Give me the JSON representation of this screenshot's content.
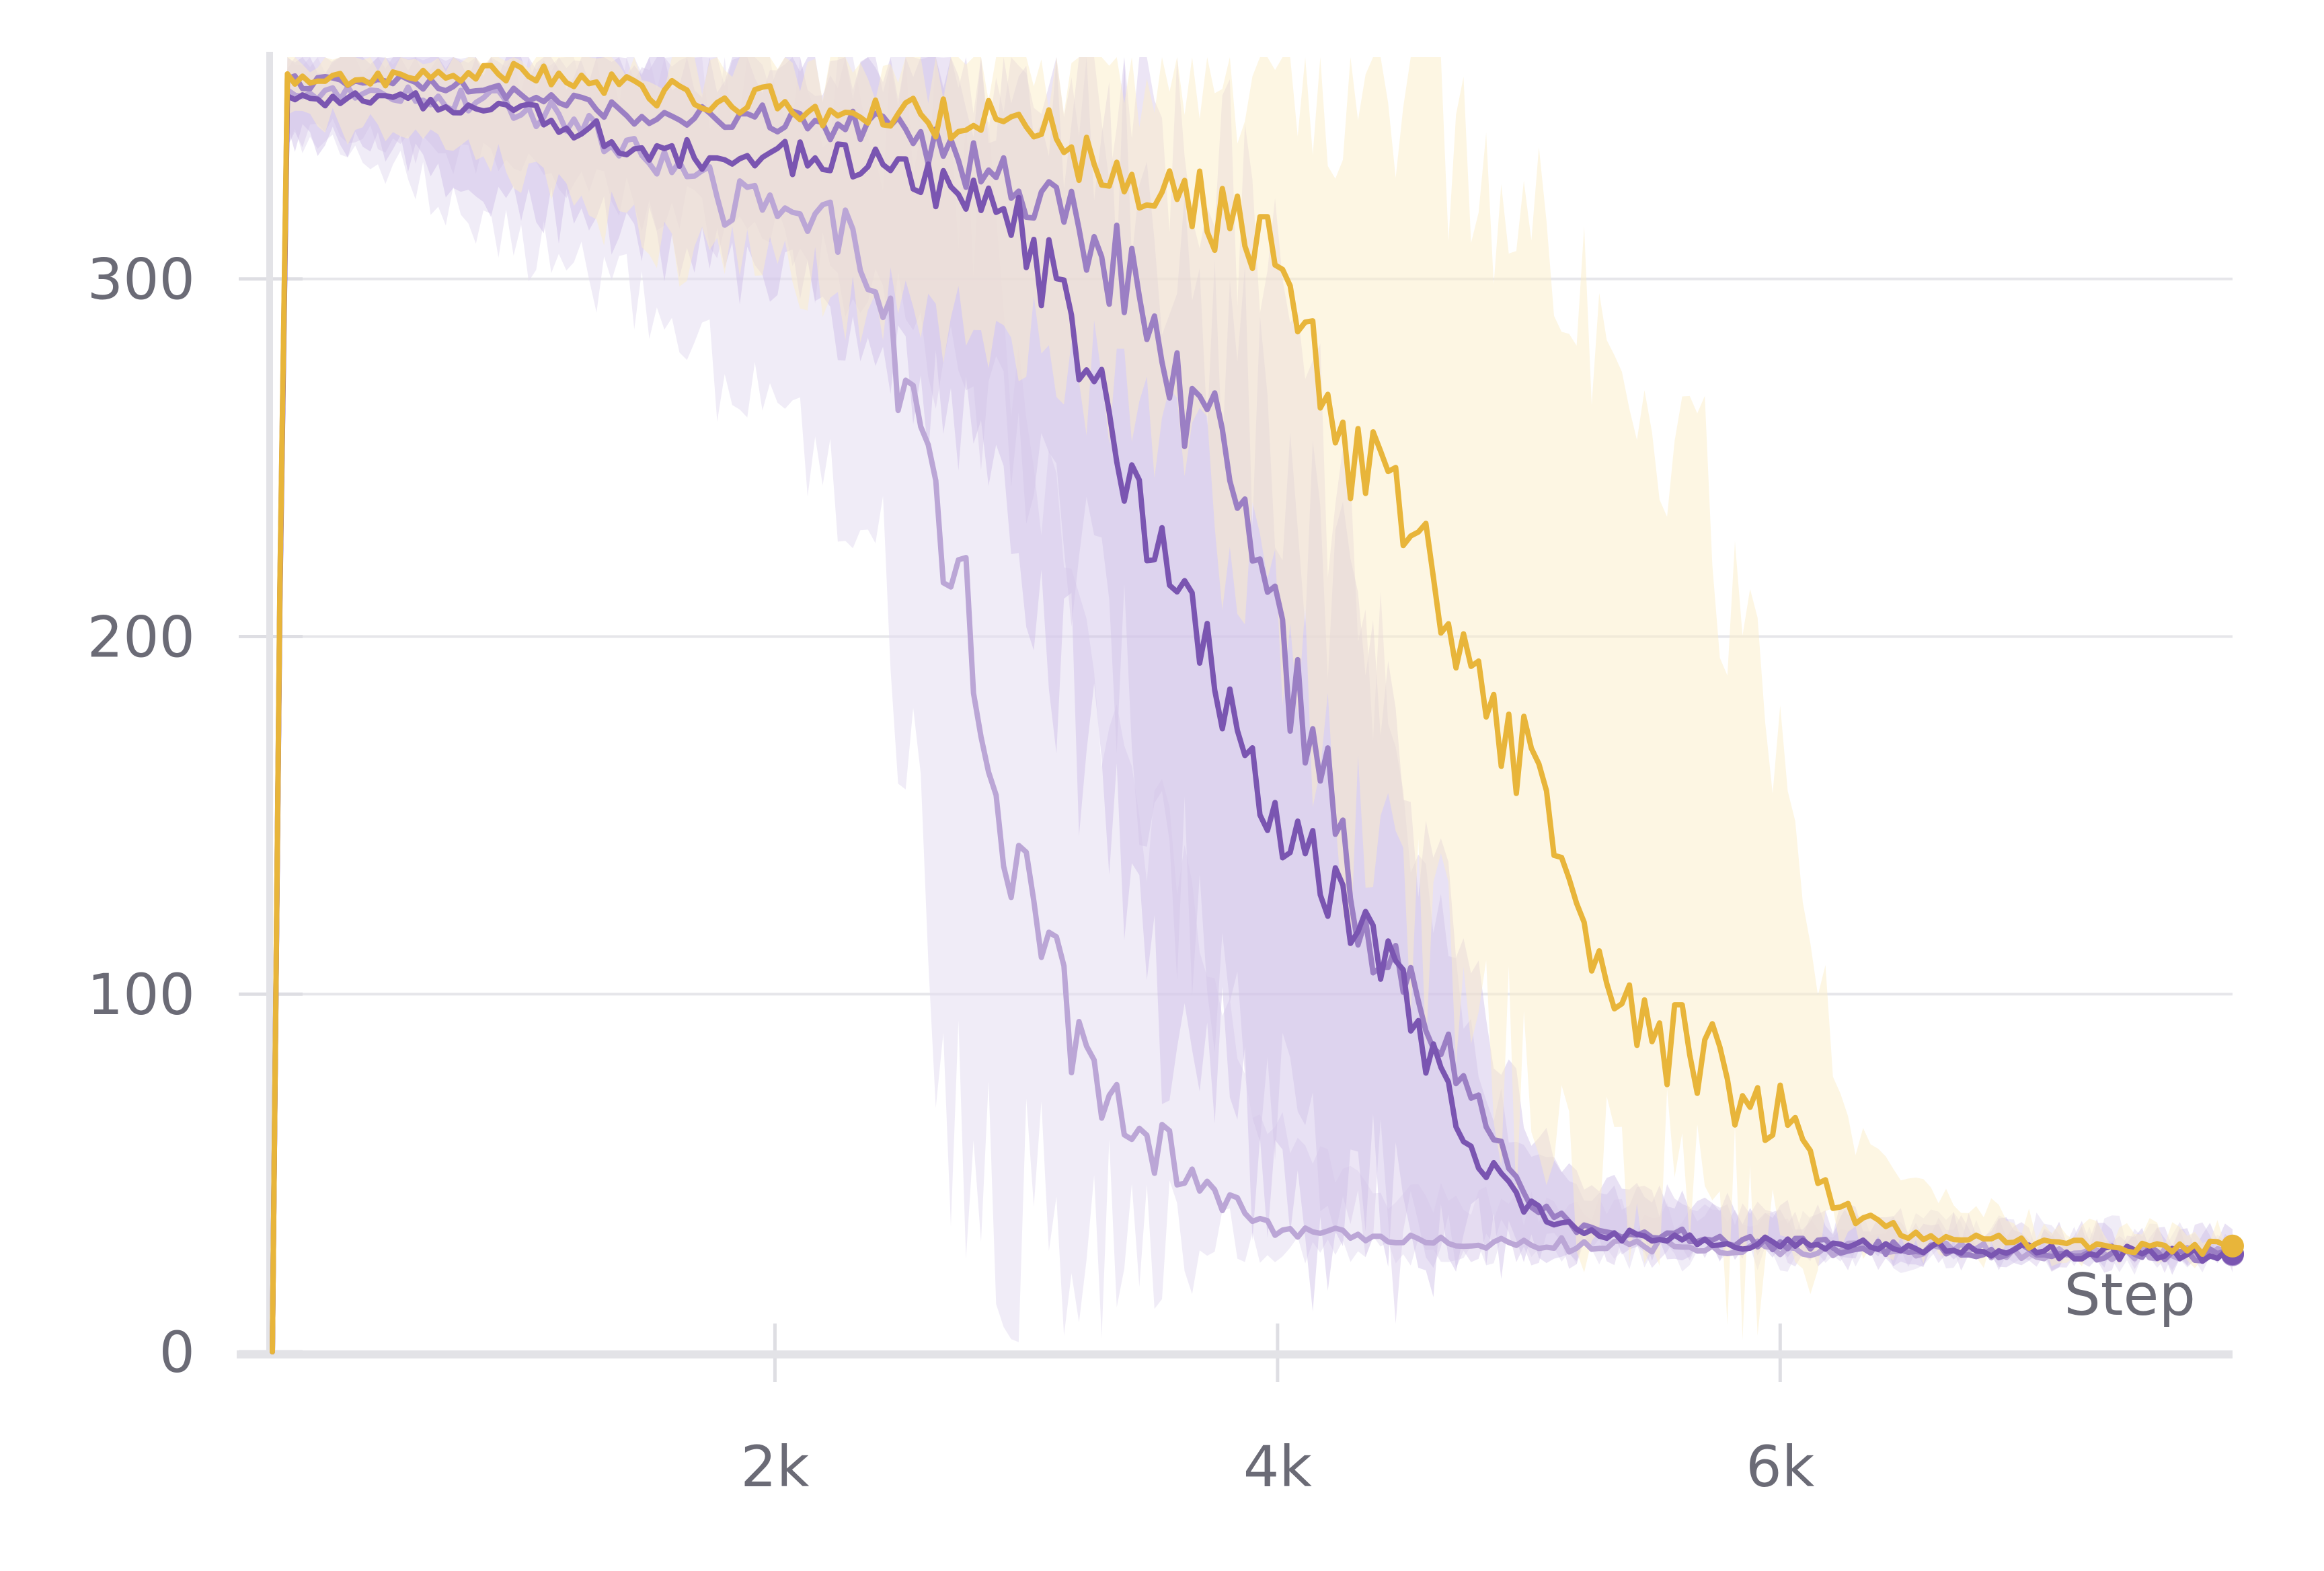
{
  "chart_data": {
    "type": "line",
    "xlabel": "Step",
    "ylabel": "",
    "xlim": [
      0,
      7800
    ],
    "ylim": [
      0,
      362
    ],
    "grid": true,
    "x_ticks": [
      {
        "value": 2000,
        "label": "2k"
      },
      {
        "value": 4000,
        "label": "4k"
      },
      {
        "value": 6000,
        "label": "6k"
      }
    ],
    "y_ticks": [
      {
        "value": 0,
        "label": "0"
      },
      {
        "value": 100,
        "label": "100"
      },
      {
        "value": 200,
        "label": "200"
      },
      {
        "value": 300,
        "label": "300"
      }
    ],
    "series": [
      {
        "color": "#bba6d6",
        "band_color": "#e4dcf0",
        "band_opacity": 0.55,
        "x": [
          0,
          50,
          500,
          1000,
          1500,
          1800,
          2200,
          2400,
          2500,
          2600,
          2650,
          2750,
          2800,
          2850,
          2950,
          3050,
          3150,
          3250,
          3400,
          3550,
          3700,
          3800,
          3900,
          4100,
          4400,
          5000,
          6000,
          7000,
          7800
        ],
        "y": [
          0,
          352,
          352,
          348,
          335,
          322,
          315,
          305,
          270,
          260,
          225,
          215,
          185,
          165,
          135,
          120,
          95,
          80,
          70,
          55,
          50,
          42,
          35,
          33,
          32,
          30,
          29,
          28,
          27
        ],
        "y_low": [
          0,
          340,
          330,
          310,
          290,
          270,
          250,
          230,
          180,
          120,
          80,
          60,
          50,
          42,
          38,
          36,
          35,
          34,
          33,
          32,
          31,
          30,
          30,
          29,
          29,
          28,
          27,
          27,
          26
        ],
        "y_high": [
          0,
          362,
          362,
          362,
          360,
          358,
          355,
          352,
          350,
          345,
          340,
          330,
          320,
          310,
          290,
          260,
          230,
          200,
          170,
          140,
          110,
          90,
          70,
          55,
          45,
          40,
          36,
          34,
          32
        ]
      },
      {
        "color": "#9b7fc4",
        "band_color": "#d9ccec",
        "band_opacity": 0.5,
        "x": [
          0,
          50,
          500,
          1000,
          1500,
          2000,
          2500,
          3000,
          3200,
          3400,
          3500,
          3600,
          3700,
          3800,
          3900,
          4000,
          4100,
          4200,
          4300,
          4400,
          4500,
          4600,
          4700,
          4800,
          4900,
          5000,
          5200,
          6000,
          7000,
          7800
        ],
        "y": [
          0,
          355,
          355,
          352,
          345,
          345,
          340,
          325,
          315,
          300,
          285,
          270,
          260,
          250,
          230,
          200,
          175,
          155,
          130,
          110,
          100,
          95,
          80,
          70,
          55,
          42,
          35,
          30,
          28,
          27
        ],
        "y_low": [
          0,
          342,
          338,
          330,
          320,
          310,
          290,
          250,
          220,
          190,
          160,
          130,
          100,
          80,
          70,
          60,
          50,
          45,
          40,
          36,
          34,
          32,
          31,
          30,
          30,
          29,
          28,
          28,
          27,
          26
        ],
        "y_high": [
          0,
          362,
          362,
          362,
          362,
          362,
          362,
          360,
          358,
          355,
          350,
          345,
          340,
          330,
          320,
          300,
          280,
          250,
          220,
          190,
          160,
          130,
          100,
          80,
          65,
          55,
          45,
          38,
          33,
          31
        ]
      },
      {
        "color": "#7a55b1",
        "band_color": "#cdbde6",
        "band_opacity": 0.45,
        "x": [
          0,
          50,
          500,
          1000,
          1500,
          2000,
          2500,
          2800,
          3000,
          3100,
          3200,
          3300,
          3400,
          3500,
          3600,
          3700,
          3800,
          3900,
          4000,
          4100,
          4200,
          4300,
          4400,
          4500,
          4600,
          4700,
          4800,
          4900,
          5000,
          5200,
          6000,
          7000,
          7800
        ],
        "y": [
          0,
          350,
          350,
          348,
          335,
          335,
          330,
          325,
          310,
          300,
          280,
          265,
          245,
          225,
          210,
          195,
          175,
          165,
          150,
          140,
          130,
          120,
          110,
          100,
          85,
          70,
          55,
          45,
          40,
          33,
          30,
          28,
          27
        ],
        "y_low": [
          0,
          340,
          335,
          320,
          310,
          300,
          280,
          250,
          220,
          200,
          180,
          150,
          120,
          100,
          85,
          75,
          65,
          55,
          50,
          45,
          42,
          40,
          38,
          36,
          34,
          32,
          31,
          30,
          30,
          29,
          28,
          27,
          26
        ],
        "y_high": [
          0,
          362,
          362,
          362,
          362,
          362,
          362,
          360,
          355,
          350,
          345,
          340,
          335,
          325,
          310,
          295,
          280,
          265,
          250,
          235,
          220,
          200,
          180,
          160,
          140,
          120,
          100,
          80,
          65,
          50,
          38,
          33,
          31
        ]
      },
      {
        "color": "#e8b53a",
        "band_color": "#fbeec8",
        "band_opacity": 0.5,
        "x": [
          0,
          50,
          500,
          1000,
          1500,
          2000,
          2500,
          3000,
          3300,
          3600,
          3800,
          4000,
          4100,
          4200,
          4300,
          4350,
          4400,
          4500,
          4600,
          4700,
          4800,
          4900,
          5000,
          5100,
          5200,
          5300,
          5400,
          5500,
          5600,
          5700,
          5800,
          5900,
          6000,
          6100,
          6200,
          6300,
          6500,
          7000,
          7800
        ],
        "y": [
          0,
          356,
          356,
          358,
          352,
          350,
          345,
          345,
          330,
          325,
          315,
          310,
          280,
          270,
          245,
          250,
          265,
          235,
          220,
          205,
          190,
          175,
          165,
          145,
          125,
          110,
          100,
          90,
          85,
          80,
          75,
          70,
          65,
          55,
          45,
          38,
          33,
          30,
          29
        ],
        "y_low": [
          0,
          345,
          340,
          330,
          310,
          300,
          290,
          280,
          270,
          250,
          230,
          200,
          180,
          160,
          140,
          130,
          125,
          120,
          110,
          100,
          90,
          80,
          70,
          60,
          55,
          50,
          45,
          42,
          40,
          38,
          36,
          34,
          33,
          32,
          31,
          30,
          29,
          28,
          27
        ],
        "y_high": [
          0,
          362,
          362,
          362,
          362,
          362,
          362,
          362,
          362,
          362,
          362,
          362,
          362,
          362,
          362,
          362,
          362,
          360,
          350,
          340,
          330,
          320,
          310,
          300,
          290,
          280,
          270,
          260,
          250,
          240,
          220,
          200,
          160,
          130,
          90,
          60,
          45,
          35,
          32
        ]
      }
    ]
  }
}
